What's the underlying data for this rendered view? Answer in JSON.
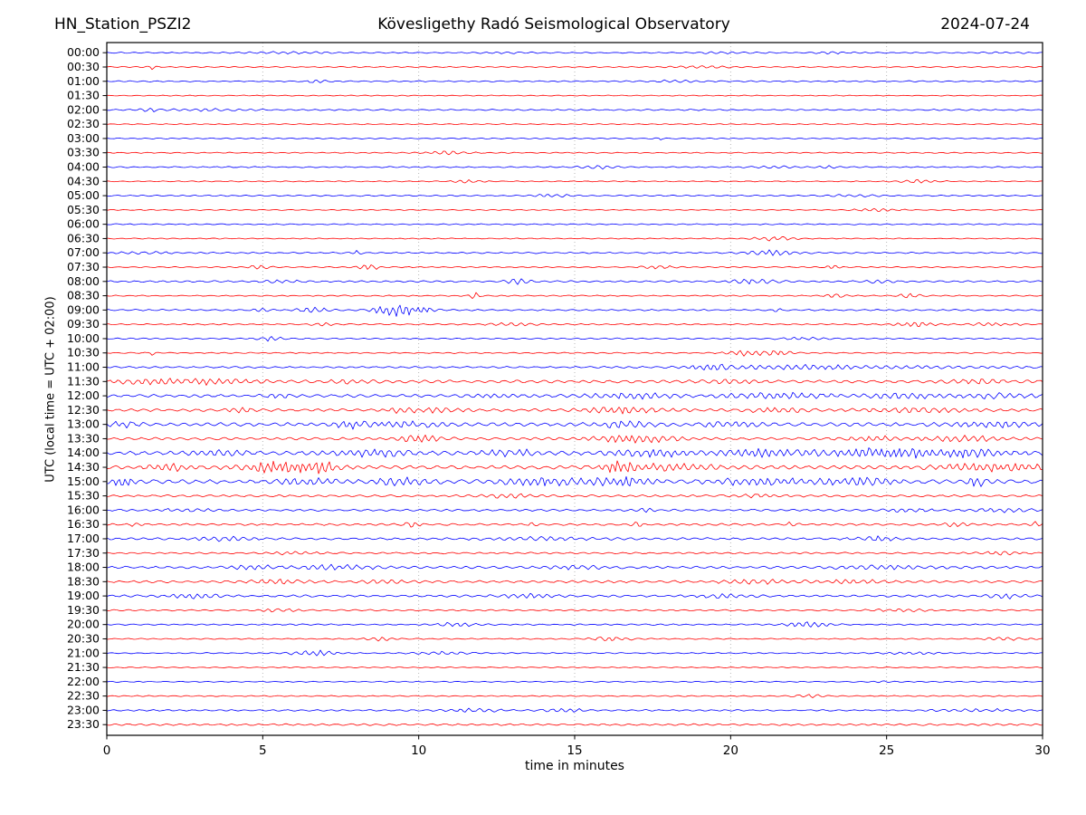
{
  "header": {
    "station": "HN_Station_PSZI2",
    "observatory": "Kövesligethy Radó Seismological Observatory",
    "date": "2024-07-24"
  },
  "chart_data": {
    "type": "line",
    "subtype": "helicorder-seismogram",
    "title": "Kövesligethy Radó Seismological Observatory",
    "station": "HN_Station_PSZI2",
    "date": "2024-07-24",
    "xlabel": "time in minutes",
    "ylabel": "UTC (local time = UTC + 02:00)",
    "x_ticks": [
      0,
      5,
      10,
      15,
      20,
      25,
      30
    ],
    "x_range_minutes": [
      0,
      30
    ],
    "row_duration_minutes": 30,
    "grid": "vertical-dotted-at-5-min",
    "legend": "none",
    "colors": {
      "blue": "#0000ff",
      "red": "#ff0000",
      "grid": "#b0b0b0",
      "axis": "#000000",
      "text": "#000000",
      "background": "#ffffff"
    },
    "rows": [
      {
        "time": "00:00",
        "color": "blue",
        "noise": 0.7,
        "events": [
          {
            "t": 5.8,
            "w": 1.5,
            "a": 0.9
          },
          {
            "t": 13,
            "w": 0.8,
            "a": 0.9
          },
          {
            "t": 20,
            "w": 1,
            "a": 1.0
          },
          {
            "t": 23.3,
            "w": 0.6,
            "a": 1.1
          },
          {
            "t": 28.8,
            "w": 0.8,
            "a": 0.8
          }
        ]
      },
      {
        "time": "00:30",
        "color": "red",
        "noise": 0.6,
        "events": [
          {
            "t": 1.5,
            "w": 0.15,
            "a": 2.6
          },
          {
            "t": 19.1,
            "w": 0.9,
            "a": 1.6
          }
        ]
      },
      {
        "time": "01:00",
        "color": "blue",
        "noise": 0.75,
        "events": [
          {
            "t": 6.7,
            "w": 0.3,
            "a": 2.0
          },
          {
            "t": 18.2,
            "w": 0.7,
            "a": 1.2
          }
        ]
      },
      {
        "time": "01:30",
        "color": "red",
        "noise": 0.55,
        "events": []
      },
      {
        "time": "02:00",
        "color": "blue",
        "noise": 0.85,
        "events": [
          {
            "t": 1.35,
            "w": 0.25,
            "a": 1.8
          },
          {
            "t": 3.2,
            "w": 1.5,
            "a": 1.0
          }
        ]
      },
      {
        "time": "02:30",
        "color": "red",
        "noise": 0.55,
        "events": []
      },
      {
        "time": "03:00",
        "color": "blue",
        "noise": 0.65,
        "events": [
          {
            "t": 17.7,
            "w": 0.15,
            "a": 1.3
          }
        ]
      },
      {
        "time": "03:30",
        "color": "red",
        "noise": 0.65,
        "events": [
          {
            "t": 10.9,
            "w": 0.7,
            "a": 1.9
          }
        ]
      },
      {
        "time": "04:00",
        "color": "blue",
        "noise": 0.75,
        "events": [
          {
            "t": 15.7,
            "w": 0.6,
            "a": 1.9
          },
          {
            "t": 21.5,
            "w": 0.7,
            "a": 1.2
          },
          {
            "t": 23.2,
            "w": 0.4,
            "a": 1.2
          }
        ]
      },
      {
        "time": "04:30",
        "color": "red",
        "noise": 0.6,
        "events": [
          {
            "t": 11.6,
            "w": 0.5,
            "a": 2.1
          },
          {
            "t": 26.1,
            "w": 0.7,
            "a": 1.5
          }
        ]
      },
      {
        "time": "05:00",
        "color": "blue",
        "noise": 0.75,
        "events": [
          {
            "t": 14.2,
            "w": 0.6,
            "a": 1.9
          },
          {
            "t": 24,
            "w": 0.9,
            "a": 1.1
          }
        ]
      },
      {
        "time": "05:30",
        "color": "red",
        "noise": 0.6,
        "events": [
          {
            "t": 24.7,
            "w": 0.7,
            "a": 1.5
          }
        ]
      },
      {
        "time": "06:00",
        "color": "blue",
        "noise": 0.7,
        "events": []
      },
      {
        "time": "06:30",
        "color": "red",
        "noise": 0.6,
        "events": [
          {
            "t": 21.4,
            "w": 0.7,
            "a": 2.3
          }
        ]
      },
      {
        "time": "07:00",
        "color": "blue",
        "noise": 0.85,
        "events": [
          {
            "t": 1.2,
            "w": 1.2,
            "a": 1.0
          },
          {
            "t": 8.0,
            "w": 0.12,
            "a": 3.2
          },
          {
            "t": 21.3,
            "w": 0.8,
            "a": 2.6
          }
        ]
      },
      {
        "time": "07:30",
        "color": "red",
        "noise": 0.7,
        "events": [
          {
            "t": 4.9,
            "w": 0.3,
            "a": 2.6
          },
          {
            "t": 8.4,
            "w": 0.4,
            "a": 2.6
          },
          {
            "t": 17.7,
            "w": 0.5,
            "a": 1.9
          },
          {
            "t": 23.3,
            "w": 0.2,
            "a": 2.1
          }
        ]
      },
      {
        "time": "08:00",
        "color": "blue",
        "noise": 1.0,
        "events": [
          {
            "t": 5.8,
            "w": 0.7,
            "a": 1.4
          },
          {
            "t": 13.2,
            "w": 0.4,
            "a": 2.6
          },
          {
            "t": 20.7,
            "w": 0.7,
            "a": 2.6
          },
          {
            "t": 24.8,
            "w": 0.4,
            "a": 1.5
          }
        ]
      },
      {
        "time": "08:30",
        "color": "red",
        "noise": 0.7,
        "events": [
          {
            "t": 11.8,
            "w": 0.15,
            "a": 3.8
          },
          {
            "t": 23.3,
            "w": 0.3,
            "a": 2.3
          },
          {
            "t": 25.7,
            "w": 0.4,
            "a": 1.9
          }
        ]
      },
      {
        "time": "09:00",
        "color": "blue",
        "noise": 0.9,
        "events": [
          {
            "t": 5.0,
            "w": 0.3,
            "a": 1.6
          },
          {
            "t": 6.6,
            "w": 0.5,
            "a": 2.6
          },
          {
            "t": 9.3,
            "w": 0.7,
            "a": 7.0
          },
          {
            "t": 10.2,
            "w": 0.3,
            "a": 3.5
          },
          {
            "t": 21.5,
            "w": 0.12,
            "a": 3.2
          }
        ]
      },
      {
        "time": "09:30",
        "color": "red",
        "noise": 0.8,
        "events": [
          {
            "t": 6.9,
            "w": 0.3,
            "a": 2.1
          },
          {
            "t": 13,
            "w": 0.9,
            "a": 1.2
          },
          {
            "t": 26,
            "w": 0.7,
            "a": 2.6
          },
          {
            "t": 28.5,
            "w": 0.7,
            "a": 1.9
          }
        ]
      },
      {
        "time": "10:00",
        "color": "blue",
        "noise": 0.8,
        "events": [
          {
            "t": 5.2,
            "w": 0.4,
            "a": 2.3
          },
          {
            "t": 22.3,
            "w": 0.7,
            "a": 1.3
          }
        ]
      },
      {
        "time": "10:30",
        "color": "red",
        "noise": 0.7,
        "events": [
          {
            "t": 1.5,
            "w": 0.12,
            "a": 2.6
          },
          {
            "t": 20.6,
            "w": 0.7,
            "a": 3.1
          },
          {
            "t": 21.6,
            "w": 0.4,
            "a": 2.4
          }
        ]
      },
      {
        "time": "11:00",
        "color": "blue",
        "noise": 1.0,
        "events": [
          {
            "t": 19.3,
            "w": 0.7,
            "a": 2.9
          },
          {
            "t": 22,
            "w": 1.8,
            "a": 1.7
          },
          {
            "t": 25,
            "w": 5,
            "a": 1.1
          }
        ]
      },
      {
        "time": "11:30",
        "color": "red",
        "noise": 1.7,
        "events": [
          {
            "t": 1.6,
            "w": 1.3,
            "a": 2.4
          },
          {
            "t": 3.6,
            "w": 1.3,
            "a": 2.1
          },
          {
            "t": 7.8,
            "w": 0.7,
            "a": 2.0
          },
          {
            "t": 20,
            "w": 0.9,
            "a": 1.5
          },
          {
            "t": 28,
            "w": 0.9,
            "a": 2.0
          }
        ]
      },
      {
        "time": "12:00",
        "color": "blue",
        "noise": 1.7,
        "events": [
          {
            "t": 5.5,
            "w": 0.4,
            "a": 1.9
          },
          {
            "t": 12.5,
            "w": 0.9,
            "a": 1.9
          },
          {
            "t": 16.8,
            "w": 1.3,
            "a": 2.7
          },
          {
            "t": 21.5,
            "w": 1.8,
            "a": 2.4
          },
          {
            "t": 25.5,
            "w": 0.9,
            "a": 2.7
          },
          {
            "t": 28.2,
            "w": 1.6,
            "a": 2.0
          }
        ]
      },
      {
        "time": "12:30",
        "color": "red",
        "noise": 1.6,
        "events": [
          {
            "t": 4.3,
            "w": 0.4,
            "a": 2.4
          },
          {
            "t": 9.4,
            "w": 0.4,
            "a": 2.4
          },
          {
            "t": 10.6,
            "w": 0.9,
            "a": 1.9
          },
          {
            "t": 16.6,
            "w": 1.3,
            "a": 2.9
          },
          {
            "t": 21.5,
            "w": 0.9,
            "a": 2.4
          },
          {
            "t": 26,
            "w": 1.8,
            "a": 1.9
          }
        ]
      },
      {
        "time": "13:00",
        "color": "blue",
        "noise": 2.1,
        "events": [
          {
            "t": 0.5,
            "w": 0.4,
            "a": 2.4
          },
          {
            "t": 7.7,
            "w": 0.4,
            "a": 2.9
          },
          {
            "t": 9.2,
            "w": 1.8,
            "a": 2.3
          },
          {
            "t": 16.6,
            "w": 0.9,
            "a": 2.9
          },
          {
            "t": 20,
            "w": 0.9,
            "a": 2.4
          },
          {
            "t": 28.5,
            "w": 1.3,
            "a": 2.4
          }
        ]
      },
      {
        "time": "13:30",
        "color": "red",
        "noise": 1.5,
        "events": [
          {
            "t": 10,
            "w": 0.7,
            "a": 3.4
          },
          {
            "t": 17,
            "w": 1.3,
            "a": 3.9
          },
          {
            "t": 24.5,
            "w": 0.9,
            "a": 2.4
          },
          {
            "t": 27.5,
            "w": 1.3,
            "a": 2.4
          }
        ]
      },
      {
        "time": "14:00",
        "color": "blue",
        "noise": 2.3,
        "events": [
          {
            "t": 3.5,
            "w": 0.9,
            "a": 2.4
          },
          {
            "t": 8.5,
            "w": 1.3,
            "a": 2.9
          },
          {
            "t": 13,
            "w": 0.9,
            "a": 2.9
          },
          {
            "t": 17.5,
            "w": 1.3,
            "a": 3.4
          },
          {
            "t": 21,
            "w": 1.3,
            "a": 3.4
          },
          {
            "t": 24.5,
            "w": 1.8,
            "a": 3.9
          },
          {
            "t": 27.5,
            "w": 1.8,
            "a": 3.9
          }
        ]
      },
      {
        "time": "14:30",
        "color": "red",
        "noise": 2.1,
        "events": [
          {
            "t": 2,
            "w": 0.9,
            "a": 2.9
          },
          {
            "t": 5.6,
            "w": 1.2,
            "a": 5.8
          },
          {
            "t": 6.9,
            "w": 0.4,
            "a": 4.8
          },
          {
            "t": 16.4,
            "w": 0.4,
            "a": 5.8
          },
          {
            "t": 18,
            "w": 1.8,
            "a": 2.9
          },
          {
            "t": 28.5,
            "w": 1.8,
            "a": 3.9
          }
        ]
      },
      {
        "time": "15:00",
        "color": "blue",
        "noise": 2.4,
        "events": [
          {
            "t": 0.5,
            "w": 0.4,
            "a": 4.8
          },
          {
            "t": 6.5,
            "w": 0.9,
            "a": 2.9
          },
          {
            "t": 9.5,
            "w": 0.9,
            "a": 2.9
          },
          {
            "t": 14,
            "w": 1.3,
            "a": 3.4
          },
          {
            "t": 16.5,
            "w": 0.9,
            "a": 3.9
          },
          {
            "t": 21,
            "w": 1.3,
            "a": 3.4
          },
          {
            "t": 24,
            "w": 1.3,
            "a": 2.9
          },
          {
            "t": 27.9,
            "w": 0.3,
            "a": 4.8
          }
        ]
      },
      {
        "time": "15:30",
        "color": "red",
        "noise": 1.3,
        "events": [
          {
            "t": 12.8,
            "w": 0.9,
            "a": 1.9
          },
          {
            "t": 21,
            "w": 0.9,
            "a": 1.7
          }
        ]
      },
      {
        "time": "16:00",
        "color": "blue",
        "noise": 1.2,
        "events": [
          {
            "t": 2.5,
            "w": 0.9,
            "a": 1.4
          },
          {
            "t": 17.3,
            "w": 0.2,
            "a": 2.4
          },
          {
            "t": 25.7,
            "w": 0.7,
            "a": 1.9
          },
          {
            "t": 28.7,
            "w": 0.9,
            "a": 1.9
          }
        ]
      },
      {
        "time": "16:30",
        "color": "red",
        "noise": 1.2,
        "events": [
          {
            "t": 1,
            "w": 0.2,
            "a": 2.4
          },
          {
            "t": 9.8,
            "w": 0.3,
            "a": 2.4
          },
          {
            "t": 13.7,
            "w": 0.2,
            "a": 2.4
          },
          {
            "t": 17,
            "w": 0.2,
            "a": 1.9
          },
          {
            "t": 22,
            "w": 0.2,
            "a": 2.4
          },
          {
            "t": 27.2,
            "w": 0.4,
            "a": 1.9
          },
          {
            "t": 29.8,
            "w": 0.2,
            "a": 2.9
          }
        ]
      },
      {
        "time": "17:00",
        "color": "blue",
        "noise": 1.3,
        "events": [
          {
            "t": 3.8,
            "w": 0.9,
            "a": 1.9
          },
          {
            "t": 14,
            "w": 1.8,
            "a": 1.5
          },
          {
            "t": 24.7,
            "w": 0.7,
            "a": 2.1
          }
        ]
      },
      {
        "time": "17:30",
        "color": "red",
        "noise": 1.0,
        "events": [
          {
            "t": 6,
            "w": 0.7,
            "a": 1.7
          },
          {
            "t": 28.7,
            "w": 0.7,
            "a": 2.1
          }
        ]
      },
      {
        "time": "18:00",
        "color": "blue",
        "noise": 1.4,
        "events": [
          {
            "t": 4.7,
            "w": 0.7,
            "a": 1.9
          },
          {
            "t": 7.3,
            "w": 1.3,
            "a": 2.1
          },
          {
            "t": 15,
            "w": 0.9,
            "a": 1.7
          },
          {
            "t": 25,
            "w": 1.8,
            "a": 1.5
          }
        ]
      },
      {
        "time": "18:30",
        "color": "red",
        "noise": 1.4,
        "events": [
          {
            "t": 5.5,
            "w": 0.9,
            "a": 2.1
          },
          {
            "t": 9,
            "w": 0.7,
            "a": 1.9
          },
          {
            "t": 21,
            "w": 1.3,
            "a": 1.9
          },
          {
            "t": 24,
            "w": 0.9,
            "a": 1.9
          }
        ]
      },
      {
        "time": "19:00",
        "color": "blue",
        "noise": 1.3,
        "events": [
          {
            "t": 2.8,
            "w": 0.7,
            "a": 2.4
          },
          {
            "t": 13.5,
            "w": 0.9,
            "a": 1.9
          },
          {
            "t": 19.7,
            "w": 0.9,
            "a": 1.9
          },
          {
            "t": 29,
            "w": 0.7,
            "a": 2.1
          }
        ]
      },
      {
        "time": "19:30",
        "color": "red",
        "noise": 0.9,
        "events": [
          {
            "t": 5.5,
            "w": 0.7,
            "a": 1.4
          },
          {
            "t": 25.5,
            "w": 0.9,
            "a": 1.2
          }
        ]
      },
      {
        "time": "20:00",
        "color": "blue",
        "noise": 0.8,
        "events": [
          {
            "t": 11.2,
            "w": 0.7,
            "a": 1.9
          },
          {
            "t": 22.5,
            "w": 0.7,
            "a": 3.4
          }
        ]
      },
      {
        "time": "20:30",
        "color": "red",
        "noise": 0.7,
        "events": [
          {
            "t": 8.7,
            "w": 0.5,
            "a": 2.1
          },
          {
            "t": 16.2,
            "w": 0.7,
            "a": 2.3
          },
          {
            "t": 28.8,
            "w": 0.7,
            "a": 1.4
          }
        ]
      },
      {
        "time": "21:00",
        "color": "blue",
        "noise": 0.7,
        "events": [
          {
            "t": 6.6,
            "w": 0.7,
            "a": 3.1
          },
          {
            "t": 10.8,
            "w": 0.8,
            "a": 2.1
          },
          {
            "t": 25.8,
            "w": 0.9,
            "a": 1.4
          }
        ]
      },
      {
        "time": "21:30",
        "color": "red",
        "noise": 0.6,
        "events": []
      },
      {
        "time": "22:00",
        "color": "blue",
        "noise": 0.6,
        "events": [
          {
            "t": 24.8,
            "w": 0.4,
            "a": 1.2
          }
        ]
      },
      {
        "time": "22:30",
        "color": "red",
        "noise": 0.7,
        "events": [
          {
            "t": 22.5,
            "w": 0.4,
            "a": 2.1
          }
        ]
      },
      {
        "time": "23:00",
        "color": "blue",
        "noise": 0.9,
        "events": [
          {
            "t": 11.8,
            "w": 0.9,
            "a": 1.7
          },
          {
            "t": 14.7,
            "w": 0.7,
            "a": 1.7
          },
          {
            "t": 28,
            "w": 1.3,
            "a": 1.4
          }
        ]
      },
      {
        "time": "23:30",
        "color": "red",
        "noise": 1.1,
        "events": []
      }
    ]
  }
}
